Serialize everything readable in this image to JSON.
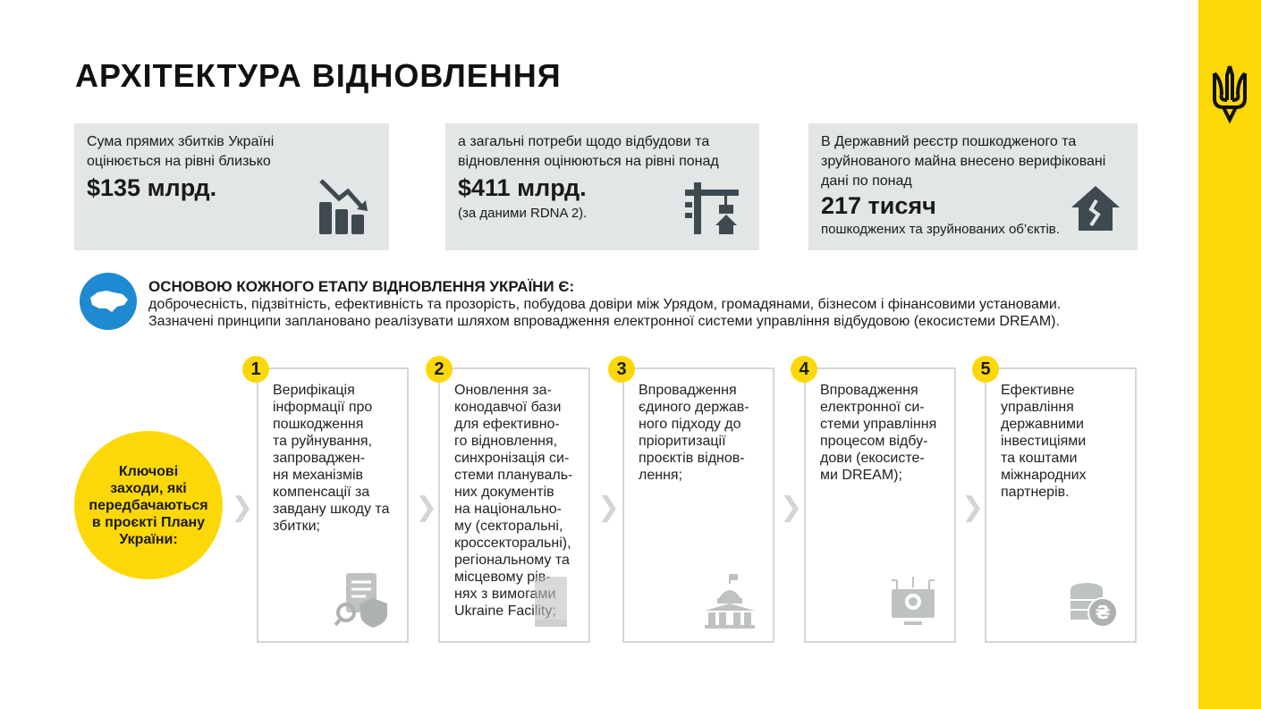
{
  "title": "АРХІТЕКТУРА ВІДНОВЛЕННЯ",
  "colors": {
    "yellow": "#fdd808",
    "blue": "#1f8ad1",
    "box": "#e3e6e6",
    "icon": "#3e4a50"
  },
  "stats": [
    {
      "text": "Сума прямих збитків Україні\nоцінюється на рівні близько",
      "value": "$135 млрд.",
      "note": "",
      "icon": "chart-down-icon"
    },
    {
      "text": "а загальні потреби щодо відбудови та\nвідновлення оцінюються на рівні понад",
      "value": "$411 млрд.",
      "note": "(за даними RDNA 2).",
      "icon": "crane-icon"
    },
    {
      "text": "В Державний реєстр пошкодженого та\nзруйнованого майна внесено верифіковані\nдані по понад",
      "value": "217 тисяч",
      "note": "пошкоджених та зруйнованих об’єктів.",
      "icon": "broken-house-icon"
    }
  ],
  "principles": {
    "heading": "ОСНОВОЮ КОЖНОГО ЕТАПУ ВІДНОВЛЕННЯ УКРАЇНИ Є:",
    "line1": "доброчесність, підзвітність, ефективність та прозорість, побудова довіри між Урядом, громадянами, бізнесом і фінансовими установами.",
    "line2": "Зазначені принципи заплановано реалізувати шляхом впровадження електронної системи управління відбудовою (екосистеми DREAM).",
    "icon": "ukraine-map-icon"
  },
  "key_label": "Ключові\nзаходи, які\nпередбачаються\nв проєкті Плану\nУкраїни:",
  "steps": [
    {
      "num": "1",
      "text": "Верифікація\nінформації про\nпошкодження\nта руйнування,\nзапроваджен-\nня механізмів\nкомпенсації за\nзавдану шкоду та\nзбитки;",
      "icon": "document-shield-icon"
    },
    {
      "num": "2",
      "text": "Оновлення за-\nконодавчої бази\nдля ефективно-\nго відновлення,\nсинхронізація си-\nстеми плануваль-\nних документів\nна національно-\nму (секторальні,\nкроссекторальні),\nрегіональному та\nмісцевому рів-\nнях з вимогами\nUkraine Facility;",
      "icon": "law-book-icon"
    },
    {
      "num": "3",
      "text": "Впровадження\nєдиного держав-\nного підходу до\nпріоритизації\nпроєктів віднов-\nлення;",
      "icon": "government-building-icon"
    },
    {
      "num": "4",
      "text": "Впровадження\nелектронної си-\nстеми управління\nпроцесом відбу-\nдови (екосисте-\nми DREAM);",
      "icon": "computer-gear-icon"
    },
    {
      "num": "5",
      "text": "Ефективне\nуправління\nдержавними\nінвестиціями\nта коштами\nміжнародних\nпартнерів.",
      "icon": "coins-hryvnia-icon"
    }
  ]
}
